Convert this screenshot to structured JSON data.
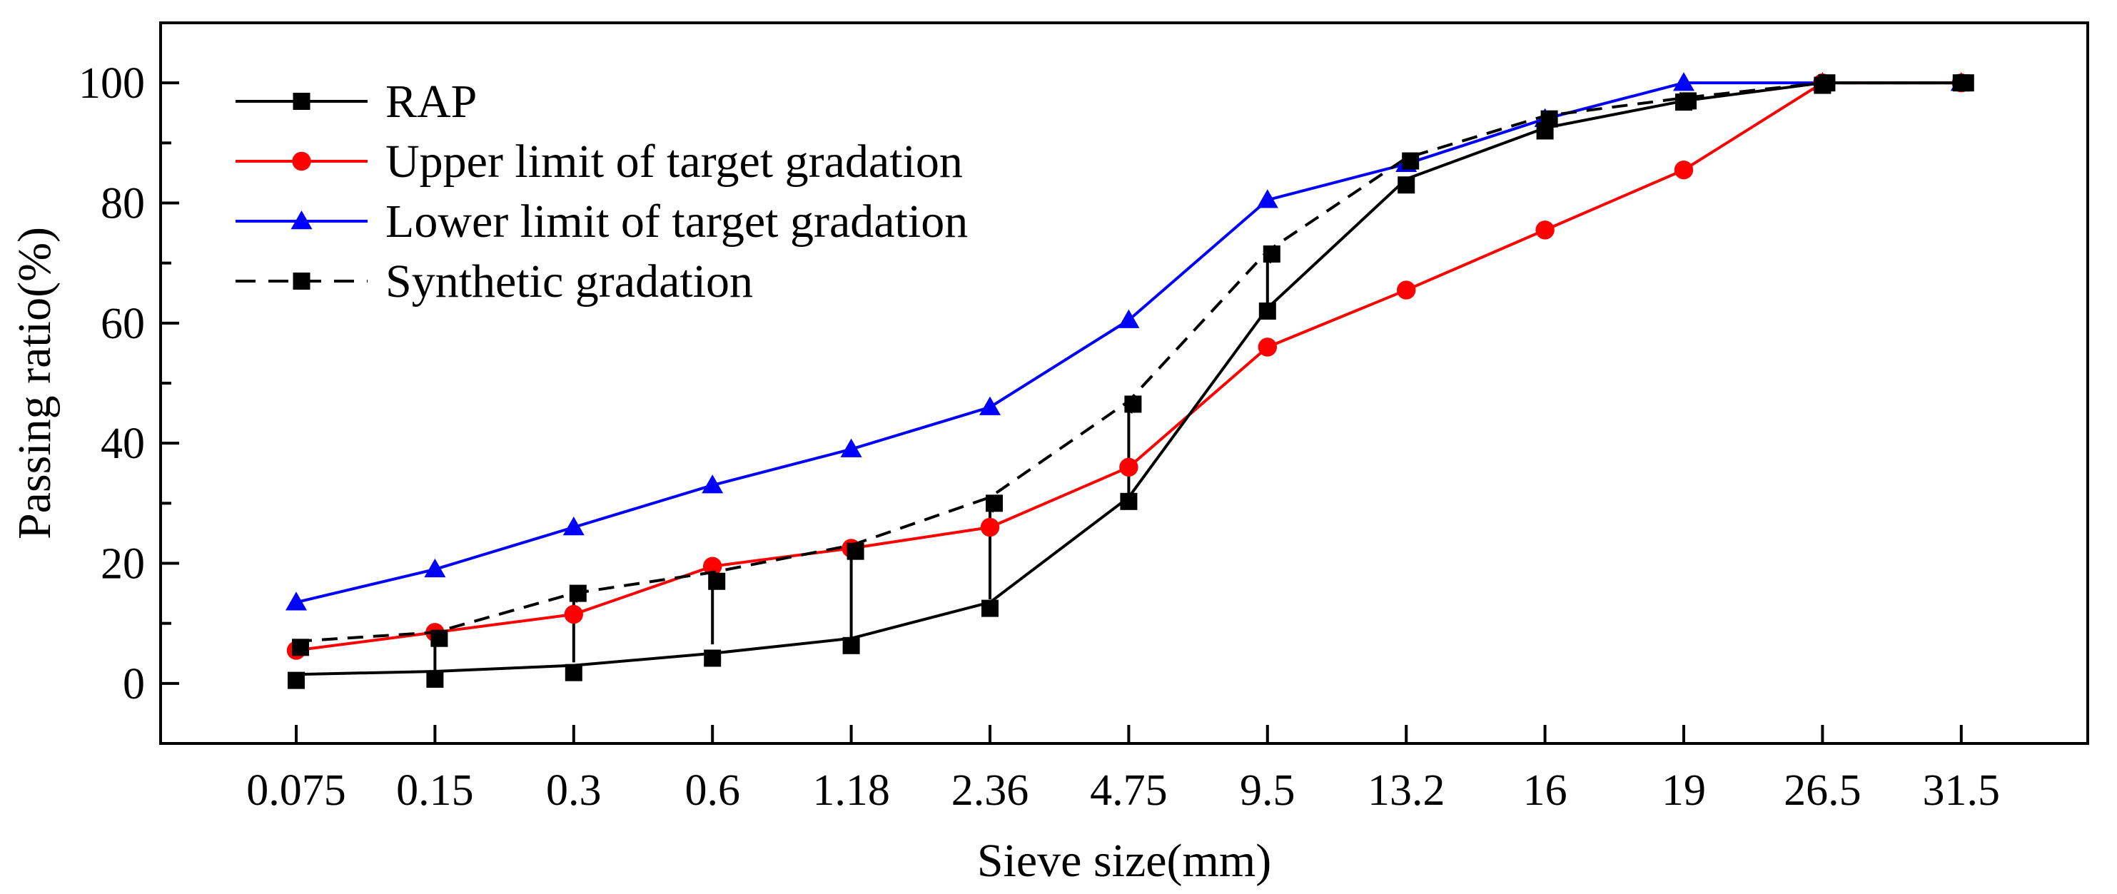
{
  "chart_data": {
    "type": "line",
    "title": "",
    "xlabel": "Sieve size(mm)",
    "ylabel": "Passing ratio(%)",
    "categories": [
      "0.075",
      "0.15",
      "0.3",
      "0.6",
      "1.18",
      "2.36",
      "4.75",
      "9.5",
      "13.2",
      "16",
      "19",
      "26.5",
      "31.5"
    ],
    "ylim": [
      -10,
      110
    ],
    "yticks": [
      0,
      20,
      40,
      60,
      80,
      100
    ],
    "grid": false,
    "legend_position": "top-left",
    "series": [
      {
        "name": "RAP",
        "color": "#000000",
        "line_style": "solid",
        "marker": "square",
        "values": [
          1.5,
          2,
          3,
          5,
          7.5,
          13.5,
          31,
          62.5,
          84,
          92.5,
          97,
          100,
          100
        ],
        "markers": [
          0.5,
          0.7,
          1.8,
          4.2,
          6.3,
          12.5,
          30.3,
          62,
          83,
          92,
          96.8,
          99.6,
          100
        ]
      },
      {
        "name": "Upper limit of target gradation",
        "color": "#ff0000",
        "line_style": "solid",
        "marker": "circle",
        "values": [
          5.5,
          8.5,
          11.5,
          19.5,
          22.5,
          26,
          36,
          56,
          65.5,
          75.5,
          85.5,
          100,
          100
        ]
      },
      {
        "name": "Lower limit of target gradation",
        "color": "#0000ff",
        "line_style": "solid",
        "marker": "triangle",
        "values": [
          13.5,
          19,
          26,
          33,
          39,
          46,
          60.5,
          80.5,
          86.5,
          94,
          100,
          100,
          100
        ]
      },
      {
        "name": "Synthetic gradation",
        "color": "#000000",
        "line_style": "dashed",
        "marker": "square",
        "values": [
          7,
          8.5,
          15,
          18.5,
          23,
          31,
          47,
          72,
          87.5,
          94.5,
          97.5,
          100,
          100
        ],
        "markers": [
          6,
          7.5,
          15,
          17,
          22,
          30,
          46.5,
          71.5,
          87,
          94,
          97,
          100,
          100
        ]
      }
    ],
    "annotations": [
      {
        "kind": "arrow",
        "category": "0.15",
        "from": 1.5,
        "to": 7.5
      },
      {
        "kind": "arrow",
        "category": "0.3",
        "from": 3.5,
        "to": 14
      },
      {
        "kind": "arrow",
        "category": "0.6",
        "from": 6.5,
        "to": 16.5
      },
      {
        "kind": "arrow",
        "category": "1.18",
        "from": 7.5,
        "to": 21.5
      },
      {
        "kind": "arrow",
        "category": "2.36",
        "from": 14,
        "to": 29
      },
      {
        "kind": "arrow",
        "category": "4.75",
        "from": 31.5,
        "to": 45.5
      },
      {
        "kind": "arrow",
        "category": "9.5",
        "from": 63,
        "to": 70.5
      }
    ]
  }
}
